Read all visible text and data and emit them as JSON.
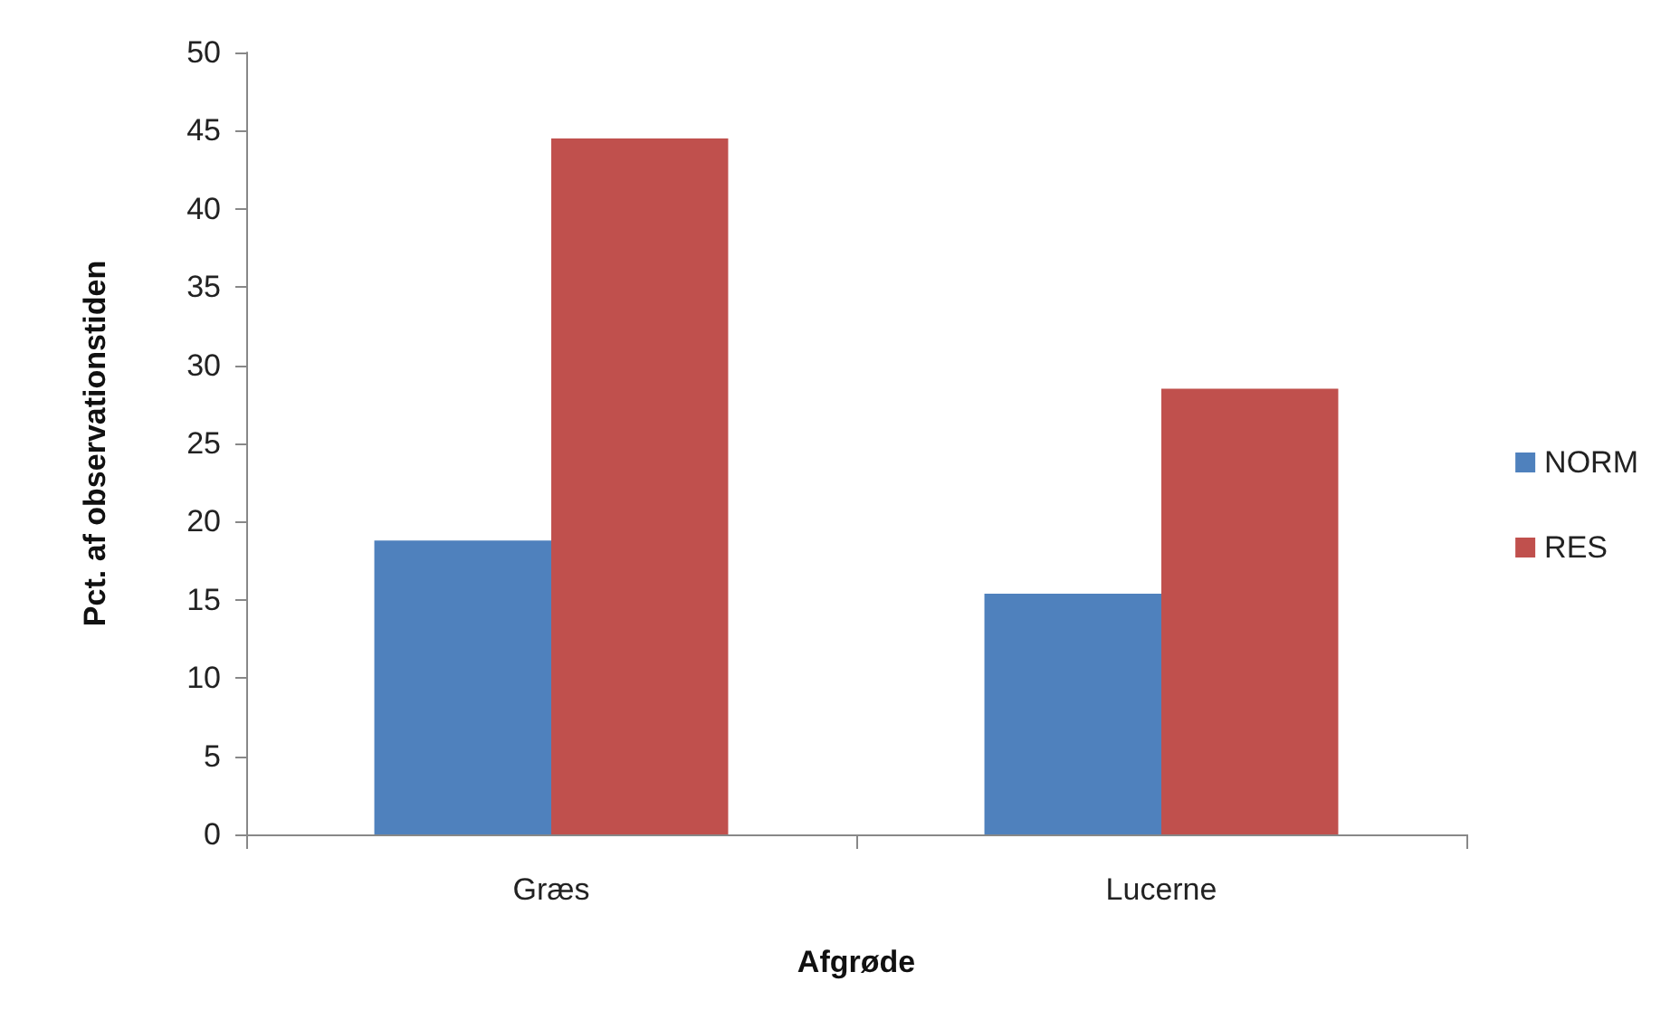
{
  "chart_data": {
    "type": "bar",
    "xlabel": "Afgrøde",
    "ylabel": "Pct. af observationstiden",
    "categories": [
      "Græs",
      "Lucerne"
    ],
    "series": [
      {
        "name": "NORM",
        "color": "#4f81bd",
        "values": [
          18.8,
          15.4
        ]
      },
      {
        "name": "RES",
        "color": "#c0504d",
        "values": [
          44.5,
          28.5
        ]
      }
    ],
    "ylim": [
      0,
      50
    ],
    "yticks": [
      0,
      5,
      10,
      15,
      20,
      25,
      30,
      35,
      40,
      45,
      50
    ],
    "grid": false,
    "legend": "right"
  }
}
